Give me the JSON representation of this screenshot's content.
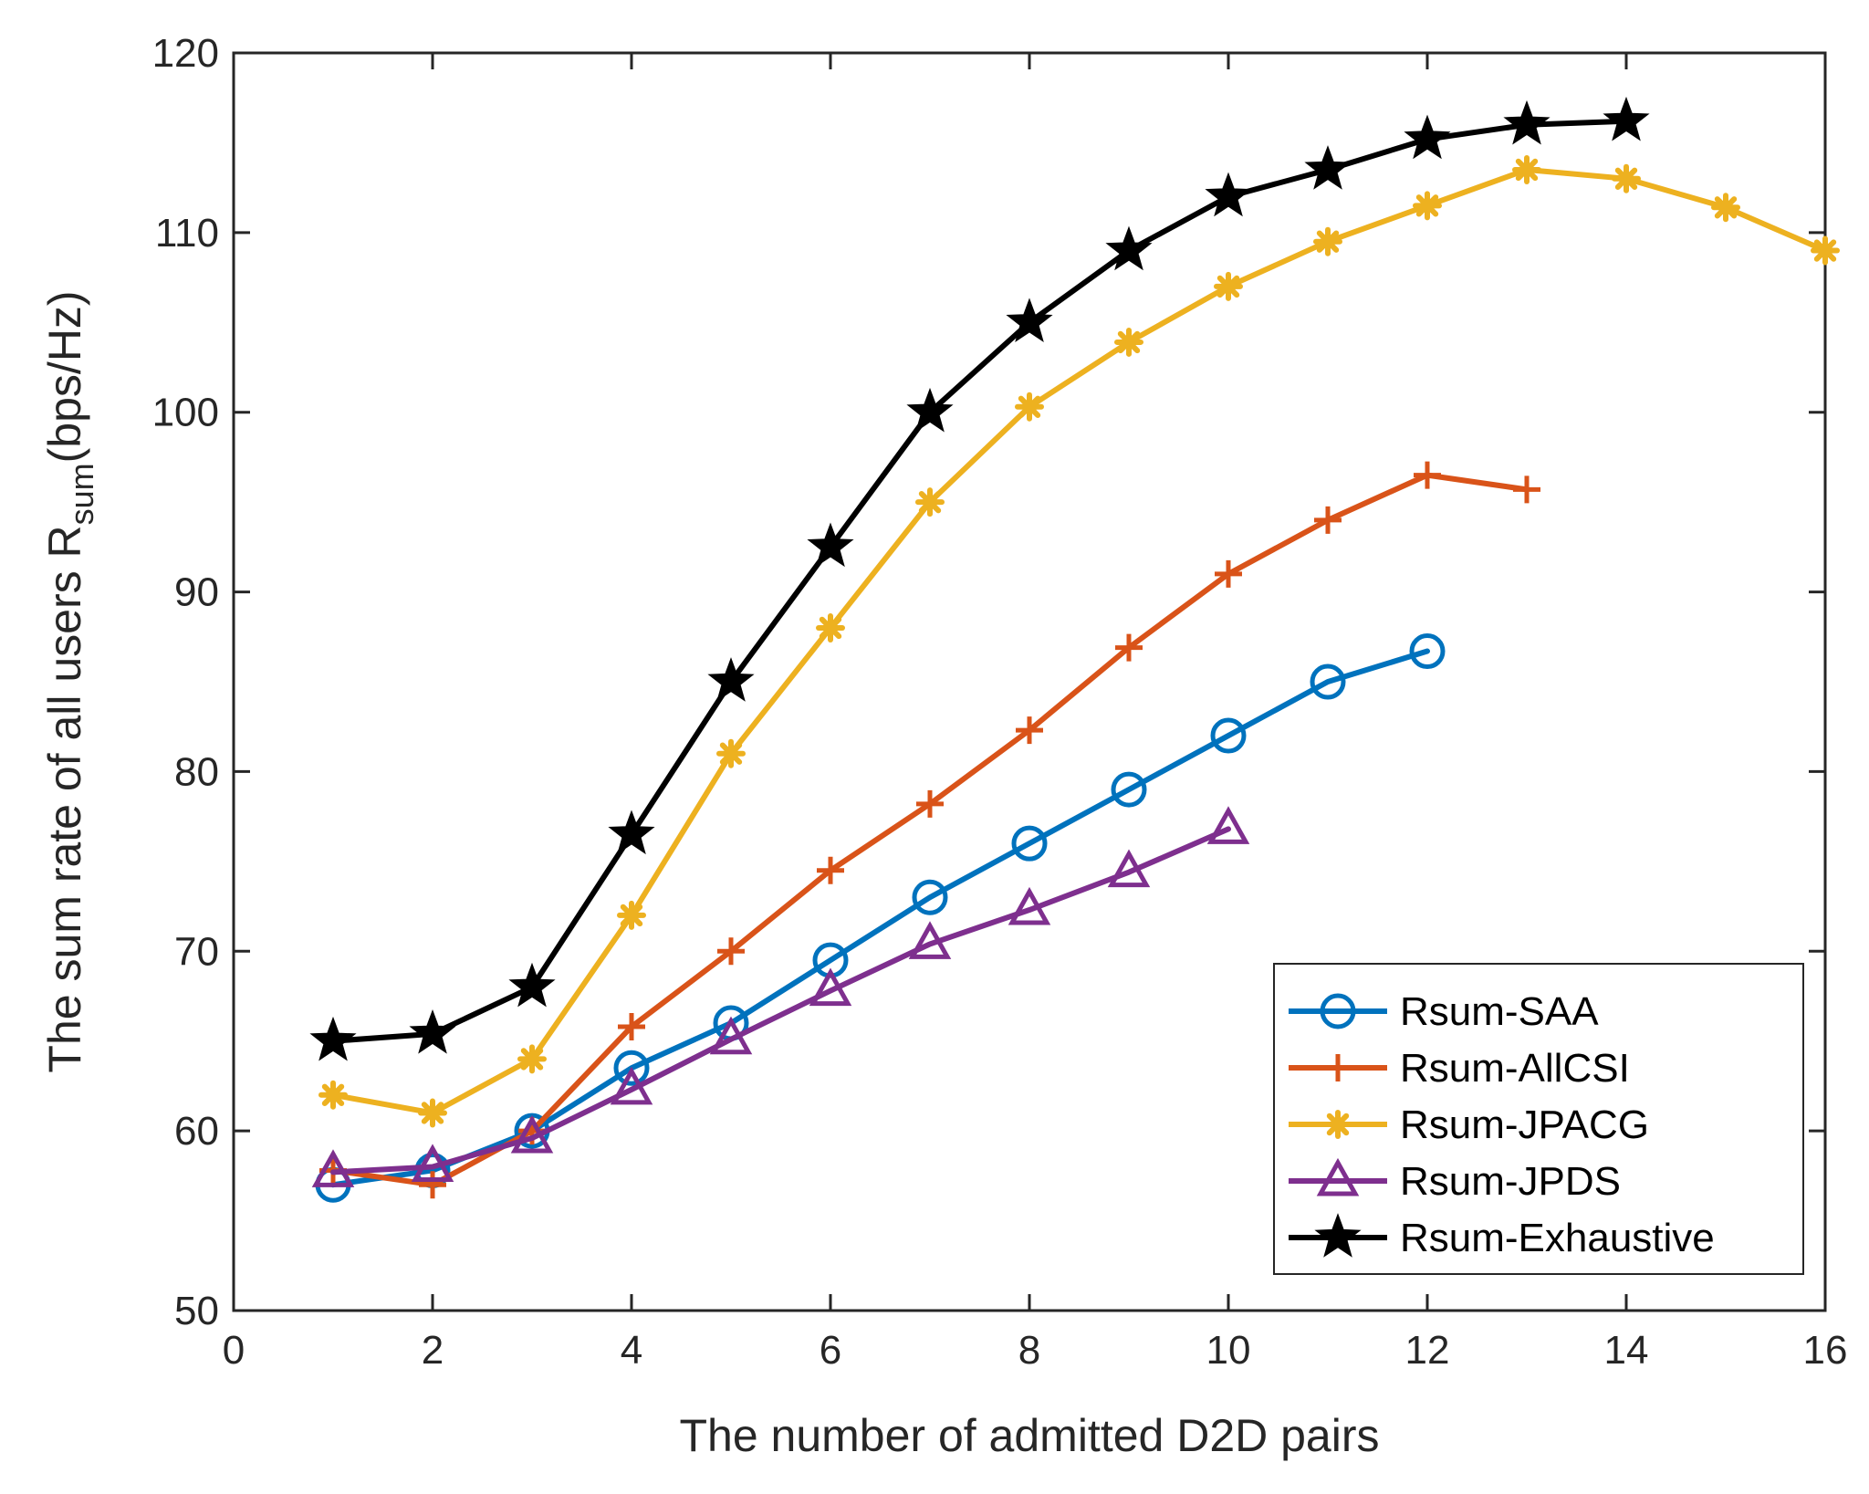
{
  "chart_data": {
    "type": "line",
    "title": "",
    "xlabel": "The number of admitted D2D pairs",
    "ylabel": {
      "main": "The sum rate of all users R",
      "subscript": "sum",
      "suffix": "(bps/Hz)"
    },
    "xlim": [
      0,
      16
    ],
    "ylim": [
      50,
      120
    ],
    "xticks": [
      0,
      2,
      4,
      6,
      8,
      10,
      12,
      14,
      16
    ],
    "yticks": [
      50,
      60,
      70,
      80,
      90,
      100,
      110,
      120
    ],
    "grid": false,
    "legend_position": "bottom-right",
    "series": [
      {
        "name": "Rsum-SAA",
        "color": "#0072BD",
        "marker": "circle",
        "x": [
          1,
          2,
          3,
          4,
          5,
          6,
          7,
          8,
          9,
          10,
          11,
          12
        ],
        "y": [
          57.0,
          57.8,
          60.0,
          63.5,
          66.0,
          69.5,
          73.0,
          76.0,
          79.0,
          82.0,
          85.0,
          86.7
        ]
      },
      {
        "name": "Rsum-AllCSI",
        "color": "#D95319",
        "marker": "plus",
        "x": [
          1,
          2,
          3,
          4,
          5,
          6,
          7,
          8,
          9,
          10,
          11,
          12,
          13
        ],
        "y": [
          57.8,
          57.0,
          60.0,
          65.8,
          70.0,
          74.5,
          78.2,
          82.3,
          86.9,
          91.0,
          94.0,
          96.5,
          95.7
        ]
      },
      {
        "name": "Rsum-JPACG",
        "color": "#EDB120",
        "marker": "asterisk",
        "x": [
          1,
          2,
          3,
          4,
          5,
          6,
          7,
          8,
          9,
          10,
          11,
          12,
          13,
          14,
          15,
          16
        ],
        "y": [
          62.0,
          61.0,
          64.0,
          72.0,
          81.0,
          88.0,
          95.0,
          100.3,
          103.9,
          107.0,
          109.5,
          111.5,
          113.5,
          113.0,
          111.4,
          109.0
        ]
      },
      {
        "name": "Rsum-JPDS",
        "color": "#7E2F8E",
        "marker": "triangle",
        "x": [
          1,
          2,
          3,
          4,
          5,
          6,
          7,
          8,
          9,
          10
        ],
        "y": [
          57.7,
          58.0,
          59.6,
          62.3,
          65.1,
          67.8,
          70.4,
          72.3,
          74.4,
          76.8
        ]
      },
      {
        "name": "Rsum-Exhaustive",
        "color": "#000000",
        "marker": "star",
        "x": [
          1,
          2,
          3,
          4,
          5,
          6,
          7,
          8,
          9,
          10,
          11,
          12,
          13,
          14
        ],
        "y": [
          65.0,
          65.4,
          68.0,
          76.5,
          85.0,
          92.5,
          100.0,
          105.0,
          109.0,
          112.0,
          113.5,
          115.2,
          116.0,
          116.2
        ]
      }
    ]
  }
}
